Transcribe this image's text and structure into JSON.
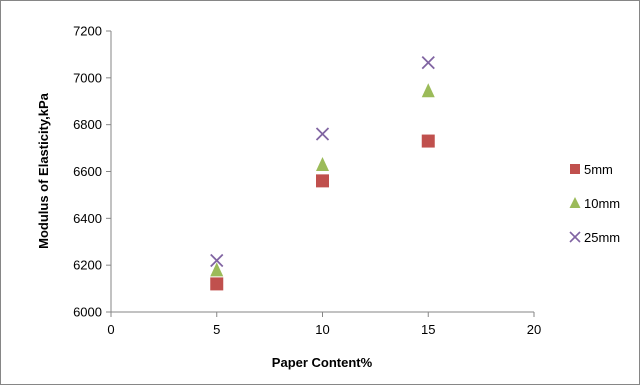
{
  "chart_data": {
    "type": "scatter",
    "title": "",
    "xlabel": "Paper Content%",
    "ylabel": "Modulus of Elasticity,kPa",
    "xlim": [
      0,
      20
    ],
    "ylim": [
      6000,
      7200
    ],
    "xticks": [
      0,
      5,
      10,
      15,
      20
    ],
    "yticks": [
      6000,
      6200,
      6400,
      6600,
      6800,
      7000,
      7200
    ],
    "grid": false,
    "legend_position": "right",
    "series": [
      {
        "name": "5mm",
        "marker": "square",
        "color": "#C0504D",
        "points": [
          [
            5,
            6120
          ],
          [
            10,
            6560
          ],
          [
            15,
            6730
          ]
        ]
      },
      {
        "name": "10mm",
        "marker": "triangle",
        "color": "#9BBB59",
        "points": [
          [
            5,
            6180
          ],
          [
            10,
            6630
          ],
          [
            15,
            6945
          ]
        ]
      },
      {
        "name": "25mm",
        "marker": "x",
        "color": "#8064A2",
        "points": [
          [
            5,
            6220
          ],
          [
            10,
            6760
          ],
          [
            15,
            7065
          ]
        ]
      }
    ]
  }
}
